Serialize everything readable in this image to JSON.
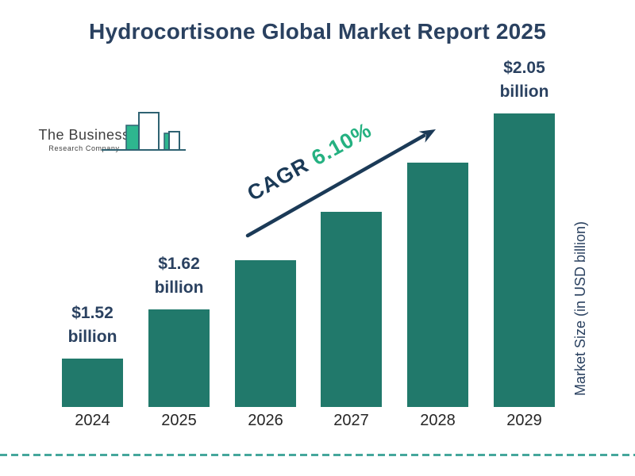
{
  "title": "Hydrocortisone Global Market Report 2025",
  "logo": {
    "line1": "The Business",
    "line2": "Research Company"
  },
  "cagr": {
    "label": "CAGR",
    "value": "6.10%"
  },
  "y_axis_label": "Market Size (in USD billion)",
  "chart_data": {
    "type": "bar",
    "title": "Hydrocortisone Global Market Report 2025",
    "categories": [
      "2024",
      "2025",
      "2026",
      "2027",
      "2028",
      "2029"
    ],
    "values": [
      1.52,
      1.62,
      1.72,
      1.82,
      1.93,
      2.05
    ],
    "unit": "USD billion",
    "ylabel": "Market Size (in USD billion)",
    "cagr_percent": "6.10%",
    "value_labels": [
      {
        "bar_index": 0,
        "lines": [
          "$1.52",
          "billion"
        ]
      },
      {
        "bar_index": 1,
        "lines": [
          "$1.62",
          "billion"
        ]
      },
      {
        "bar_index": 5,
        "lines": [
          "$2.05",
          "billion"
        ]
      }
    ],
    "legend": "none",
    "grid": false
  },
  "colors": {
    "bar": "#21796b",
    "navy": "#2a4160",
    "green": "#25b181",
    "arrow_navy": "#1b3a57",
    "year_text": "#262626",
    "dashed": "#45a79c",
    "logo_teal": "#2eb68f",
    "logo_outline": "#2f6272",
    "logo_text": "#3f3f3f"
  }
}
